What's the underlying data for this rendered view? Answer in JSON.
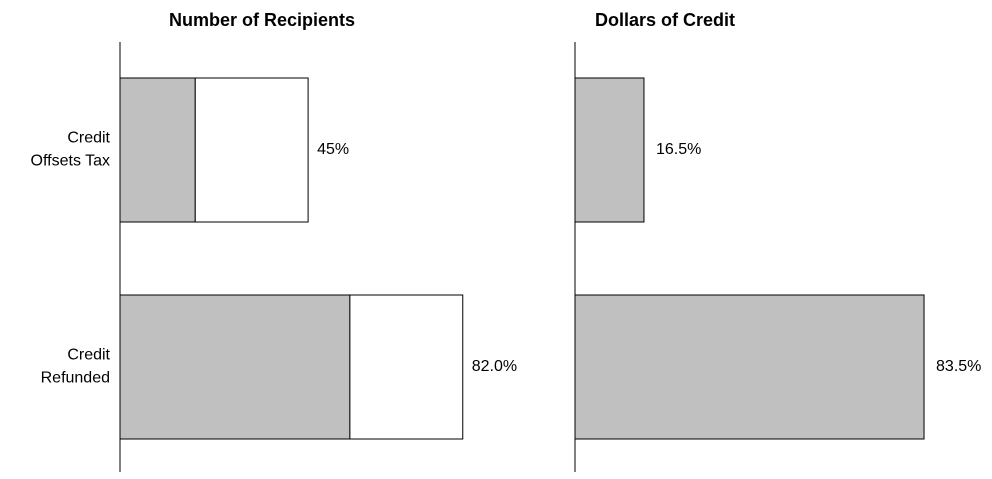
{
  "chart_data": [
    {
      "type": "stacked-bar-horizontal",
      "title": "Number of Recipients",
      "categories": [
        [
          "Credit",
          "Offsets Tax"
        ],
        [
          "Credit",
          "Refunded"
        ]
      ],
      "series": [
        {
          "color": "#c0c0c0",
          "values": [
            18,
            55
          ]
        },
        {
          "color": "#ffffff",
          "values": [
            27,
            27
          ]
        }
      ],
      "totals": [
        45,
        82
      ],
      "total_labels": [
        "45%",
        "82.0%"
      ],
      "xlim": [
        0,
        100
      ]
    },
    {
      "type": "bar-horizontal",
      "title": "Dollars of Credit",
      "values": [
        16.5,
        83.5
      ],
      "value_labels": [
        "16.5%",
        "83.5%"
      ],
      "color": "#c0c0c0",
      "xlim": [
        0,
        100
      ]
    }
  ]
}
